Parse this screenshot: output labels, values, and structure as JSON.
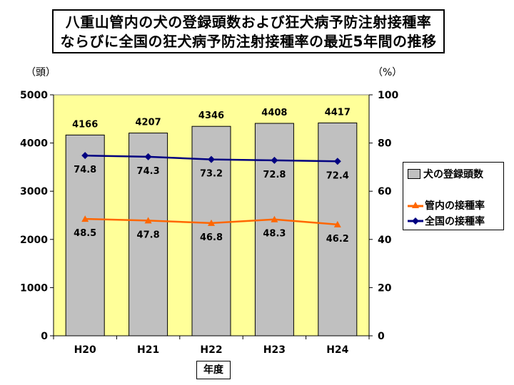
{
  "title": {
    "line1": "八重山管内の犬の登録頭数および狂犬病予防注射接種率",
    "line2": "ならびに全国の狂犬病予防注射接種率の最近5年間の推移"
  },
  "colors": {
    "plot_bg": "#ffff99",
    "bar_fill": "#c0c0c0",
    "bar_stroke": "#000000",
    "local_rate": "#ff6600",
    "national_rate": "#000080"
  },
  "chart_data": {
    "type": "bar",
    "title": "八重山管内の犬の登録頭数および狂犬病予防注射接種率ならびに全国の狂犬病予防注射接種率の最近5年間の推移",
    "categories": [
      "H20",
      "H21",
      "H22",
      "H23",
      "H24"
    ],
    "xlabel": "年度",
    "ylabel_left": "（頭）",
    "ylabel_right": "（%）",
    "ylim_left": [
      0,
      5000
    ],
    "ylim_right": [
      0,
      100
    ],
    "yticks_left": [
      "0",
      "1000",
      "2000",
      "3000",
      "4000",
      "5000"
    ],
    "yticks_right": [
      "0",
      "20",
      "40",
      "60",
      "80",
      "100"
    ],
    "grid": false,
    "legend_position": "right",
    "series": [
      {
        "name": "犬の登録頭数",
        "type": "bar",
        "axis": "left",
        "values": [
          4166,
          4207,
          4346,
          4408,
          4417
        ]
      },
      {
        "name": "管内の接種率",
        "type": "line",
        "axis": "right",
        "marker": "triangle",
        "values": [
          48.5,
          47.8,
          46.8,
          48.3,
          46.2
        ]
      },
      {
        "name": "全国の接種率",
        "type": "line",
        "axis": "right",
        "marker": "diamond",
        "values": [
          74.8,
          74.3,
          73.2,
          72.8,
          72.4
        ]
      }
    ]
  }
}
